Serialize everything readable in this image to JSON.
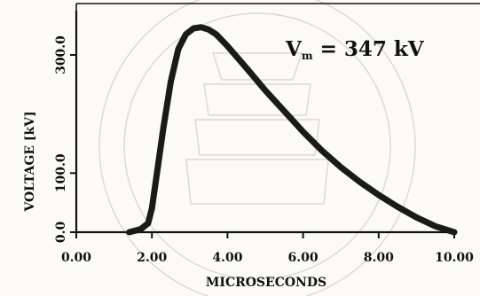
{
  "chart_data": {
    "type": "line",
    "xlabel": "MICROSECONDS",
    "ylabel": "VOLTAGE [kV]",
    "xlim": [
      0,
      10
    ],
    "ylim": [
      0,
      375
    ],
    "x_ticks": [
      {
        "value": 0,
        "label": "0.00"
      },
      {
        "value": 2,
        "label": "2.00"
      },
      {
        "value": 4,
        "label": "4.00"
      },
      {
        "value": 6,
        "label": "6.00"
      },
      {
        "value": 8,
        "label": "8.00"
      },
      {
        "value": 10,
        "label": "10.00"
      }
    ],
    "y_ticks": [
      {
        "value": 0,
        "label": "0.0"
      },
      {
        "value": 100,
        "label": "100.0"
      },
      {
        "value": 300,
        "label": "300.0"
      }
    ],
    "grid": false,
    "annotation": {
      "main": "V",
      "sub": "m",
      "rest": " = 347 kV"
    },
    "series": [
      {
        "x": [
          1.4,
          1.7,
          1.9,
          2.0,
          2.1,
          2.3,
          2.5,
          2.7,
          2.9,
          3.1,
          3.3,
          3.5,
          3.7,
          4.0,
          4.5,
          5.0,
          5.5,
          6.0,
          6.5,
          7.0,
          7.5,
          8.0,
          8.5,
          9.0,
          9.5,
          10.0
        ],
        "y": [
          0,
          5,
          15,
          40,
          85,
          175,
          255,
          310,
          335,
          345,
          347,
          343,
          335,
          315,
          278,
          240,
          205,
          170,
          138,
          110,
          85,
          63,
          43,
          25,
          10,
          0
        ]
      }
    ]
  }
}
